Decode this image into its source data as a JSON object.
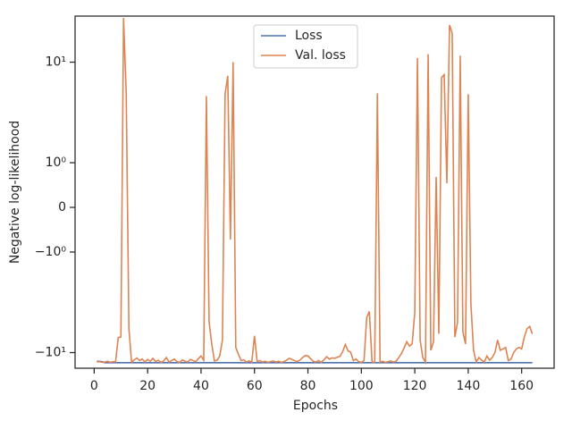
{
  "chart_data": {
    "type": "line",
    "xlabel": "Epochs",
    "ylabel": "Negative log-likelihood",
    "yscale": "symlog",
    "legend": "upper center",
    "x": [
      1,
      2,
      3,
      4,
      5,
      6,
      7,
      8,
      9,
      10,
      11,
      12,
      13,
      14,
      15,
      16,
      17,
      18,
      19,
      20,
      21,
      22,
      23,
      24,
      25,
      26,
      27,
      28,
      29,
      30,
      31,
      32,
      33,
      34,
      35,
      36,
      37,
      38,
      39,
      40,
      41,
      42,
      43,
      44,
      45,
      46,
      47,
      48,
      49,
      50,
      51,
      52,
      53,
      54,
      55,
      56,
      57,
      58,
      59,
      60,
      61,
      62,
      63,
      64,
      65,
      66,
      67,
      68,
      69,
      70,
      71,
      72,
      73,
      74,
      75,
      76,
      77,
      78,
      79,
      80,
      81,
      82,
      83,
      84,
      85,
      86,
      87,
      88,
      89,
      90,
      91,
      92,
      93,
      94,
      95,
      96,
      97,
      98,
      99,
      100,
      101,
      102,
      103,
      104,
      105,
      106,
      107,
      108,
      109,
      110,
      111,
      112,
      113,
      114,
      115,
      116,
      117,
      118,
      119,
      120,
      121,
      122,
      123,
      124,
      125,
      126,
      127,
      128,
      129,
      130,
      131,
      132,
      133,
      134,
      135,
      136,
      137,
      138,
      139,
      140,
      141,
      142,
      143,
      144,
      145,
      146,
      147,
      148,
      149,
      150,
      151,
      152,
      153,
      154,
      155,
      156,
      157,
      158,
      159,
      160,
      161,
      162,
      163,
      164
    ],
    "series": [
      {
        "name": "Loss",
        "color": "#4c72b0",
        "values": [
          -12.2,
          -12.2,
          -12.3,
          -12.6,
          -12.6,
          -12.6,
          -12.6,
          -12.6,
          -12.6,
          -12.6,
          -12.6,
          -12.6,
          -12.6,
          -12.6,
          -12.6,
          -12.6,
          -12.6,
          -12.6,
          -12.6,
          -12.6,
          -12.6,
          -12.6,
          -12.6,
          -12.6,
          -12.6,
          -12.6,
          -12.6,
          -12.6,
          -12.6,
          -12.6,
          -12.6,
          -12.6,
          -12.6,
          -12.6,
          -12.6,
          -12.6,
          -12.6,
          -12.6,
          -12.6,
          -12.6,
          -12.6,
          -12.6,
          -12.6,
          -12.6,
          -12.6,
          -12.6,
          -12.6,
          -12.6,
          -12.6,
          -12.6,
          -12.6,
          -12.6,
          -12.6,
          -12.6,
          -12.6,
          -12.6,
          -12.6,
          -12.6,
          -12.6,
          -12.6,
          -12.6,
          -12.6,
          -12.6,
          -12.6,
          -12.6,
          -12.6,
          -12.6,
          -12.6,
          -12.6,
          -12.6,
          -12.6,
          -12.6,
          -12.6,
          -12.6,
          -12.6,
          -12.6,
          -12.6,
          -12.6,
          -12.6,
          -12.6,
          -12.6,
          -12.6,
          -12.6,
          -12.6,
          -12.6,
          -12.6,
          -12.6,
          -12.6,
          -12.6,
          -12.6,
          -12.6,
          -12.6,
          -12.6,
          -12.6,
          -12.6,
          -12.6,
          -12.6,
          -12.6,
          -12.6,
          -12.6,
          -12.6,
          -12.6,
          -12.6,
          -12.6,
          -12.6,
          -12.6,
          -12.6,
          -12.6,
          -12.6,
          -12.6,
          -12.6,
          -12.6,
          -12.6,
          -12.6,
          -12.6,
          -12.6,
          -12.6,
          -12.6,
          -12.6,
          -12.6,
          -12.6,
          -12.6,
          -12.6,
          -12.6,
          -12.6,
          -12.6,
          -12.6,
          -12.6,
          -12.6,
          -12.6,
          -12.6,
          -12.6,
          -12.6,
          -12.6,
          -12.6,
          -12.6,
          -12.6,
          -12.6,
          -12.6,
          -12.6,
          -12.6,
          -12.6,
          -12.6,
          -12.6,
          -12.6,
          -12.6,
          -12.6,
          -12.6,
          -12.6,
          -12.6,
          -12.6,
          -12.6,
          -12.6,
          -12.6,
          -12.6,
          -12.6,
          -12.6,
          -12.6,
          -12.6,
          -12.6,
          -12.6,
          -12.6,
          -12.6,
          -12.6
        ]
      },
      {
        "name": "Val. loss",
        "color": "#dd8452",
        "values": [
          -12.4,
          -12.3,
          -12.5,
          -12.4,
          -12.2,
          -12.5,
          -12.3,
          -12.4,
          -7.1,
          -7.0,
          27.5,
          4.8,
          -5.8,
          -12.5,
          -11.8,
          -11.3,
          -12.0,
          -11.6,
          -12.4,
          -11.7,
          -12.2,
          -11.4,
          -12.3,
          -11.9,
          -12.5,
          -12.1,
          -11.2,
          -12.4,
          -12.0,
          -11.6,
          -12.3,
          -12.5,
          -11.8,
          -12.2,
          -12.4,
          -11.7,
          -12.0,
          -12.3,
          -11.5,
          -10.8,
          -11.9,
          4.6,
          -4.9,
          -8.2,
          -12.1,
          -11.9,
          -10.8,
          -7.5,
          4.8,
          7.3,
          -0.72,
          10,
          -8.9,
          -10.4,
          -12.0,
          -11.8,
          -12.4,
          -12.1,
          -12.4,
          -6.8,
          -12.3,
          -12.0,
          -12.4,
          -12.2,
          -12.5,
          -12.3,
          -12.1,
          -12.4,
          -12.2,
          -12.5,
          -12.3,
          -11.9,
          -11.4,
          -11.7,
          -12.0,
          -12.3,
          -11.9,
          -11.2,
          -10.7,
          -10.8,
          -11.5,
          -12.2,
          -12.4,
          -12.0,
          -12.5,
          -11.8,
          -11.0,
          -11.6,
          -11.3,
          -11.4,
          -11.1,
          -10.9,
          -9.8,
          -8.3,
          -9.6,
          -9.9,
          -12.0,
          -11.6,
          -12.3,
          -12.5,
          -12.0,
          -4.5,
          -3.9,
          -12.4,
          -12.5,
          4.9,
          -12.4,
          -12.2,
          -12.5,
          -12.3,
          -12.1,
          -12.4,
          -12.2,
          -11.2,
          -10.2,
          -9.0,
          -7.8,
          -8.6,
          -8.2,
          -4.0,
          11,
          -7.5,
          -11.2,
          -12.4,
          12,
          -9.5,
          -7.8,
          0.68,
          -6.5,
          7,
          7.5,
          0.54,
          23.4,
          19.4,
          -7.0,
          -5.0,
          11.6,
          -6.2,
          -8.2,
          4.8,
          -3.3,
          -9.5,
          -12.4,
          -11.2,
          -11.9,
          -12.4,
          -10.8,
          -11.9,
          -11.2,
          -10.0,
          -7.5,
          -9.5,
          -9.2,
          -8.9,
          -12.0,
          -11.6,
          -10.0,
          -9.2,
          -8.9,
          -9.2,
          -7.0,
          -5.8,
          -5.5,
          -6.5
        ]
      }
    ],
    "xlim": [
      -7.15,
      172.15
    ],
    "xticks": [
      0,
      20,
      40,
      60,
      80,
      100,
      120,
      140,
      160
    ],
    "ylim": [
      -14.3,
      28.7
    ],
    "yticks": [
      {
        "value": -10,
        "label": "−10¹"
      },
      {
        "value": -1,
        "label": "−10⁰"
      },
      {
        "value": 0,
        "label": "0"
      },
      {
        "value": 1,
        "label": "10⁰"
      },
      {
        "value": 10,
        "label": "10¹"
      }
    ]
  }
}
